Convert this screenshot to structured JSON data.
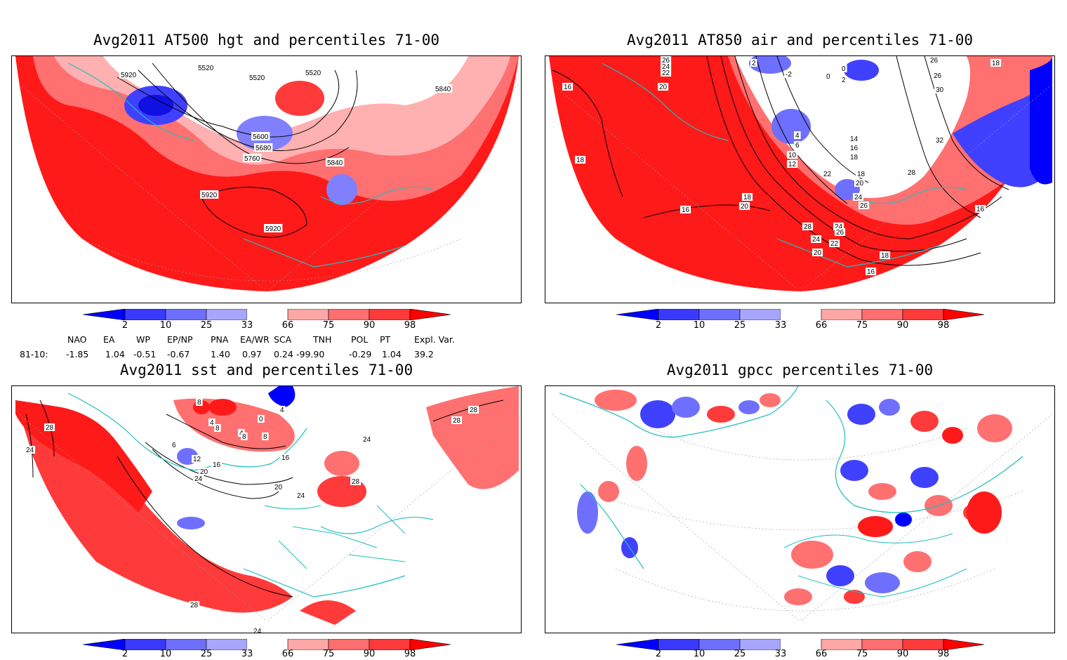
{
  "panels": [
    {
      "title": "Avg2011 AT500 hgt and percentiles 71-00",
      "contour_labels": [
        "5920",
        "5520",
        "5520",
        "5520",
        "5840",
        "5600",
        "5680",
        "5760",
        "5840",
        "5920",
        "5920"
      ]
    },
    {
      "title": "Avg2011 AT850 air and percentiles 71-00",
      "contour_labels": [
        "26",
        "24",
        "22",
        "20",
        "16",
        "2",
        "-2",
        "0",
        "0",
        "2",
        "26",
        "26",
        "30",
        "18",
        "18",
        "16",
        "4",
        "6",
        "10",
        "12",
        "14",
        "16",
        "18",
        "18",
        "20",
        "24",
        "26",
        "22",
        "28",
        "18",
        "20",
        "16",
        "28",
        "24",
        "26",
        "24",
        "22",
        "20",
        "18",
        "16",
        "32"
      ]
    },
    {
      "title": "Avg2011 sst and percentiles 71-00",
      "contour_labels": [
        "28",
        "24",
        "6",
        "8",
        "4",
        "8",
        "4",
        "8",
        "8",
        "0",
        "4",
        "12",
        "16",
        "16",
        "20",
        "24",
        "20",
        "24",
        "24",
        "28",
        "28",
        "28",
        "28",
        "24"
      ]
    },
    {
      "title": "Avg2011 gpcc percentiles 71-00",
      "contour_labels": []
    }
  ],
  "colorbar": {
    "labels": [
      "2",
      "10",
      "25",
      "33",
      "66",
      "75",
      "90",
      "98"
    ],
    "colors": [
      "#0000ff",
      "#3a3aff",
      "#6f6fff",
      "#a6a6ff",
      "#ffffff",
      "#ffa6a6",
      "#ff6f6f",
      "#ff3a3a",
      "#ff0000"
    ]
  },
  "indices": {
    "headers": [
      "NAO",
      "EA",
      "WP",
      "EP/NP",
      "PNA",
      "EA/WR",
      "SCA",
      "TNH",
      "POL",
      "PT",
      "Expl. Var."
    ],
    "row_label": "81-10:",
    "values": [
      "-1.85",
      "1.04",
      "-0.51",
      "-0.67",
      "1.40",
      "0.97",
      "0.24",
      "-99.90",
      "-0.29",
      "1.04",
      "39.2"
    ]
  },
  "map_colors": {
    "land_outline": "#1fbfbf",
    "contour": "#000000",
    "grid": "#999999"
  }
}
